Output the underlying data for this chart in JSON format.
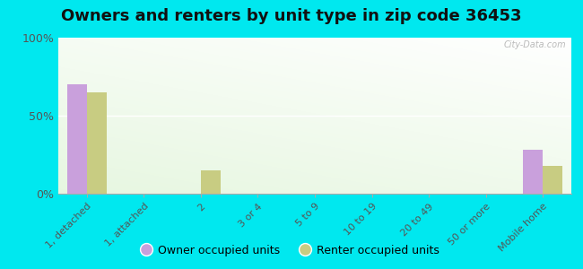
{
  "title": "Owners and renters by unit type in zip code 36453",
  "categories": [
    "1, detached",
    "1, attached",
    "2",
    "3 or 4",
    "5 to 9",
    "10 to 19",
    "20 to 49",
    "50 or more",
    "Mobile home"
  ],
  "owner_values": [
    70,
    0,
    0,
    0,
    0,
    0,
    0,
    0,
    28
  ],
  "renter_values": [
    65,
    0,
    15,
    0,
    0,
    0,
    0,
    0,
    18
  ],
  "owner_color": "#c9a0dc",
  "renter_color": "#c8cc82",
  "background_outer": "#00e8ef",
  "ylim": [
    0,
    100
  ],
  "yticks": [
    0,
    50,
    100
  ],
  "ytick_labels": [
    "0%",
    "50%",
    "100%"
  ],
  "bar_width": 0.35,
  "title_fontsize": 13,
  "legend_owner": "Owner occupied units",
  "legend_renter": "Renter occupied units",
  "watermark": "City-Data.com"
}
